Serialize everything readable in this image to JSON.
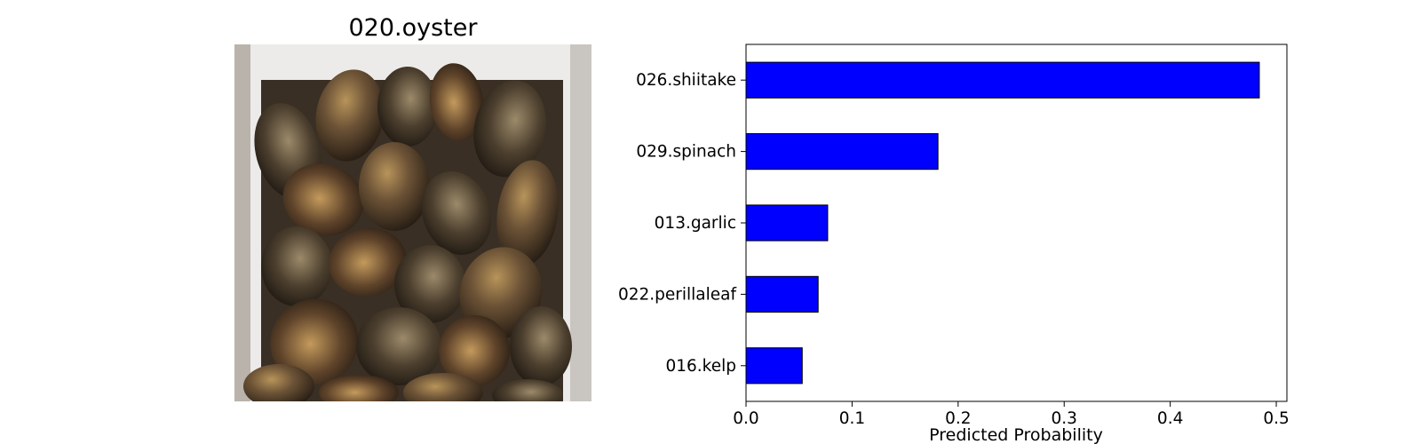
{
  "image_panel": {
    "title": "020.oyster",
    "image_icon": "photo-of-oysters-in-white-crate"
  },
  "chart_data": {
    "type": "bar",
    "orientation": "horizontal",
    "categories": [
      "026.shiitake",
      "029.spinach",
      "013.garlic",
      "022.perillaleaf",
      "016.kelp"
    ],
    "values": [
      0.484,
      0.181,
      0.077,
      0.068,
      0.053
    ],
    "xlabel": "Predicted Probability",
    "ylabel": "",
    "title": "",
    "xlim": [
      0.0,
      0.51
    ],
    "xticks": [
      "0.0",
      "0.1",
      "0.2",
      "0.3",
      "0.4",
      "0.5"
    ],
    "bar_color": "#0000ff",
    "bar_edge_color": "#000000",
    "grid": false,
    "legend": "none"
  }
}
